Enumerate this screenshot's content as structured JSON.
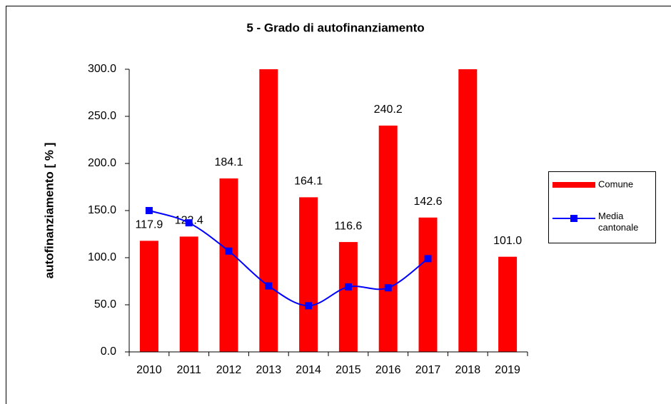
{
  "chart_data": {
    "type": "bar",
    "title": "5 - Grado di autofinanziamento",
    "y_label": "autofinanziamento [ % ]",
    "categories": [
      "2010",
      "2011",
      "2012",
      "2013",
      "2014",
      "2015",
      "2016",
      "2017",
      "2018",
      "2019"
    ],
    "series": [
      {
        "name": "Comune",
        "type": "bar",
        "color": "#ff0000",
        "values": [
          117.9,
          122.4,
          184.1,
          300,
          164.1,
          116.6,
          240.2,
          142.6,
          300,
          101.0
        ],
        "value_labels": [
          "117.9",
          "122.4",
          "184.1",
          null,
          "164.1",
          "116.6",
          "240.2",
          "142.6",
          null,
          "101.0"
        ]
      },
      {
        "name": "Media cantonale",
        "type": "line",
        "color": "#0000ff",
        "values": [
          150,
          137,
          107,
          70,
          49,
          69,
          68,
          99,
          null,
          null
        ]
      }
    ],
    "ylim": [
      0,
      300
    ],
    "yticks": [
      {
        "value": 0,
        "label": "0.0"
      },
      {
        "value": 50,
        "label": "50.0"
      },
      {
        "value": 100,
        "label": "100.0"
      },
      {
        "value": 150,
        "label": "150.0"
      },
      {
        "value": 200,
        "label": "200.0"
      },
      {
        "value": 250,
        "label": "250.0"
      },
      {
        "value": 300,
        "label": "300.0"
      }
    ],
    "grid": false,
    "legend": "right"
  }
}
